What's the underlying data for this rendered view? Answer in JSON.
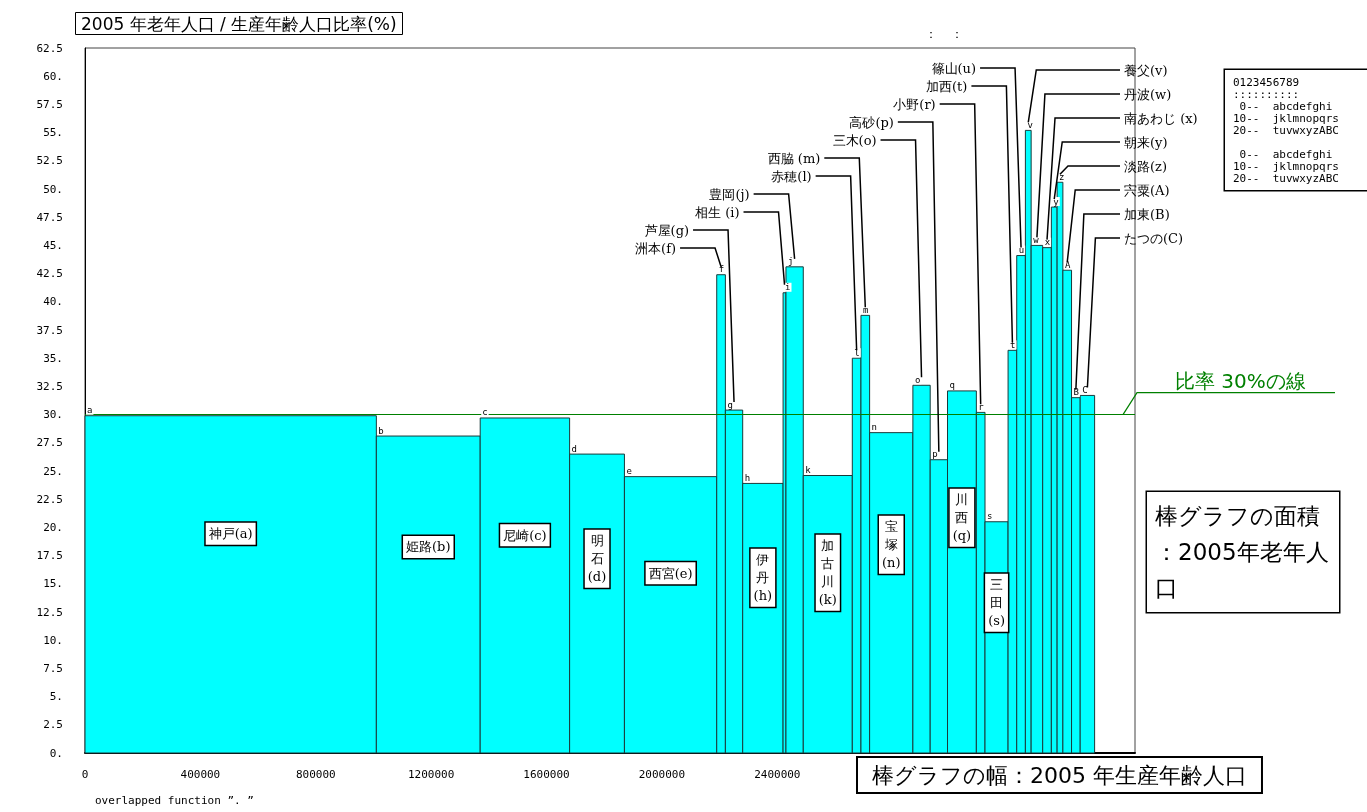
{
  "chart_data": {
    "type": "histogram",
    "title": "2005 年老年人口 / 生産年齢人口比率(%)",
    "xlabel": "棒グラフの幅：2005 年生産年齢人口",
    "bins": [
      0,
      1010000,
      1370000,
      1680000,
      1870000,
      2190000,
      2220000,
      2280000,
      2420000,
      2430000,
      2490000,
      2660000,
      2690000,
      2720000,
      2870000,
      2930000,
      2990000,
      3090000,
      3120000,
      3200000,
      3230000,
      3260000,
      3280000,
      3320000,
      3350000,
      3370000,
      3390000,
      3420000,
      3450000,
      3500000
    ],
    "values": [
      29.9,
      28.1,
      29.7,
      26.5,
      24.5,
      42.4,
      30.4,
      23.9,
      40.8,
      43.1,
      24.6,
      35.0,
      38.8,
      28.4,
      32.6,
      26.0,
      32.1,
      30.2,
      20.5,
      35.7,
      44.1,
      55.2,
      45.0,
      44.8,
      48.4,
      50.6,
      42.8,
      31.5,
      31.7
    ],
    "color": "#00ffff",
    "xlim": [
      0,
      3640000
    ],
    "xticks": [
      0,
      400000,
      800000,
      1200000,
      1600000,
      2000000,
      2400000
    ],
    "ylim": [
      0,
      62.5
    ],
    "yticks": [
      {
        "value": 0,
        "label": "0."
      },
      2.5,
      {
        "value": 5,
        "label": "5."
      },
      7.5,
      {
        "value": 10,
        "label": "10."
      },
      12.5,
      {
        "value": 15,
        "label": "15."
      },
      17.5,
      {
        "value": 20,
        "label": "20."
      },
      22.5,
      {
        "value": 25,
        "label": "25."
      },
      27.5,
      {
        "value": 30,
        "label": "30."
      },
      32.5,
      {
        "value": 35,
        "label": "35."
      },
      37.5,
      {
        "value": 40,
        "label": "40."
      },
      42.5,
      {
        "value": 45,
        "label": "45."
      },
      47.5,
      {
        "value": 50,
        "label": "50."
      },
      52.5,
      {
        "value": 55,
        "label": "55."
      },
      57.5,
      {
        "value": 60,
        "label": "60."
      },
      62.5
    ],
    "ref_lines": [
      {
        "axis": "y",
        "value": 30,
        "label": "比率 30%の線",
        "color": "#008000"
      }
    ],
    "annotations": [
      "神戸(a)",
      "姫路(b)",
      "尼崎(c)",
      "明石(d)",
      "西宮(e)",
      "伊丹(h)",
      "加古川(k)",
      "宝塚(n)",
      "川西(q)",
      "三田(s)",
      {
        "text": "洲本(f)",
        "x": 2205000,
        "y": 42.4
      },
      {
        "text": "芦屋(g)",
        "x": 2250000,
        "y": 30.4
      },
      {
        "text": "相生 (i)",
        "x": 2425000,
        "y": 40.8
      },
      {
        "text": "豊岡(j)",
        "x": 2460000,
        "y": 43.1
      },
      {
        "text": "赤穂(l)",
        "x": 2675000,
        "y": 35.0
      },
      {
        "text": "西脇 (m)",
        "x": 2705000,
        "y": 38.8
      },
      {
        "text": "三木(o)",
        "x": 2900000,
        "y": 32.6
      },
      {
        "text": "高砂(p)",
        "x": 2960000,
        "y": 26.0
      },
      {
        "text": "小野(r)",
        "x": 3105000,
        "y": 30.2
      },
      {
        "text": "加西(t)",
        "x": 3215000,
        "y": 35.7
      },
      {
        "text": "篠山(u)",
        "x": 3245000,
        "y": 44.1
      },
      {
        "text": "養父(v)",
        "x": 3270000,
        "y": 55.2
      },
      {
        "text": "丹波(w)",
        "x": 3300000,
        "y": 45.0
      },
      {
        "text": "南あわじ (x)",
        "x": 3335000,
        "y": 44.8
      },
      {
        "text": "朝来(y)",
        "x": 3360000,
        "y": 48.4
      },
      {
        "text": "淡路(z)",
        "x": 3380000,
        "y": 50.6
      },
      {
        "text": "宍粟(A)",
        "x": 3405000,
        "y": 42.8
      },
      {
        "text": "加東(B)",
        "x": 3435000,
        "y": 31.5
      },
      {
        "text": "たつの(C)",
        "x": 3475000,
        "y": 31.7
      },
      {
        "text": "a",
        "x": 0,
        "y": 29.9
      },
      {
        "text": "b",
        "x": 1010000,
        "y": 28.1
      },
      {
        "text": "c",
        "x": 1370000,
        "y": 29.7
      },
      {
        "text": "d",
        "x": 1680000,
        "y": 26.5
      },
      {
        "text": "e",
        "x": 1870000,
        "y": 24.5
      },
      {
        "text": "f",
        "x": 2190000,
        "y": 42.4
      },
      {
        "text": "g",
        "x": 2220000,
        "y": 30.4
      },
      {
        "text": "h",
        "x": 2280000,
        "y": 23.9
      },
      {
        "text": "i",
        "x": 2420000,
        "y": 40.8
      },
      {
        "text": "j",
        "x": 2430000,
        "y": 43.1
      },
      {
        "text": "k",
        "x": 2490000,
        "y": 24.6
      },
      {
        "text": "l",
        "x": 2660000,
        "y": 35.0
      },
      {
        "text": "m",
        "x": 2690000,
        "y": 38.8
      },
      {
        "text": "n",
        "x": 2720000,
        "y": 28.4
      },
      {
        "text": "o",
        "x": 2870000,
        "y": 32.6
      },
      {
        "text": "p",
        "x": 2930000,
        "y": 26.0
      },
      {
        "text": "q",
        "x": 2990000,
        "y": 32.1
      },
      {
        "text": "r",
        "x": 3090000,
        "y": 30.2
      },
      {
        "text": "s",
        "x": 3120000,
        "y": 20.5
      },
      {
        "text": "t",
        "x": 3200000,
        "y": 35.7
      },
      {
        "text": "u",
        "x": 3230000,
        "y": 44.1
      },
      {
        "text": "v",
        "x": 3260000,
        "y": 55.2
      },
      {
        "text": "w",
        "x": 3280000,
        "y": 45.0
      },
      {
        "text": "x",
        "x": 3320000,
        "y": 44.8
      },
      {
        "text": "y",
        "x": 3350000,
        "y": 48.4
      },
      {
        "text": "z",
        "x": 3370000,
        "y": 50.6
      },
      {
        "text": "A",
        "x": 3390000,
        "y": 42.8
      },
      {
        "text": "B",
        "x": 3420000,
        "y": 31.5
      },
      {
        "text": "C",
        "x": 3450000,
        "y": 31.7
      },
      "0123456789\n::::::::::\n 0--  abcdefghi\n10--  jklmnopqrs\n20--  tuvwxyzABC\n\n 0--  abcdefghi\n10--  jklmnopqrs\n20--  tuvwxyzABC",
      "overlapped function ”. ”",
      "：  ：",
      "棒グラフの面積：2005年老年人口"
    ]
  }
}
